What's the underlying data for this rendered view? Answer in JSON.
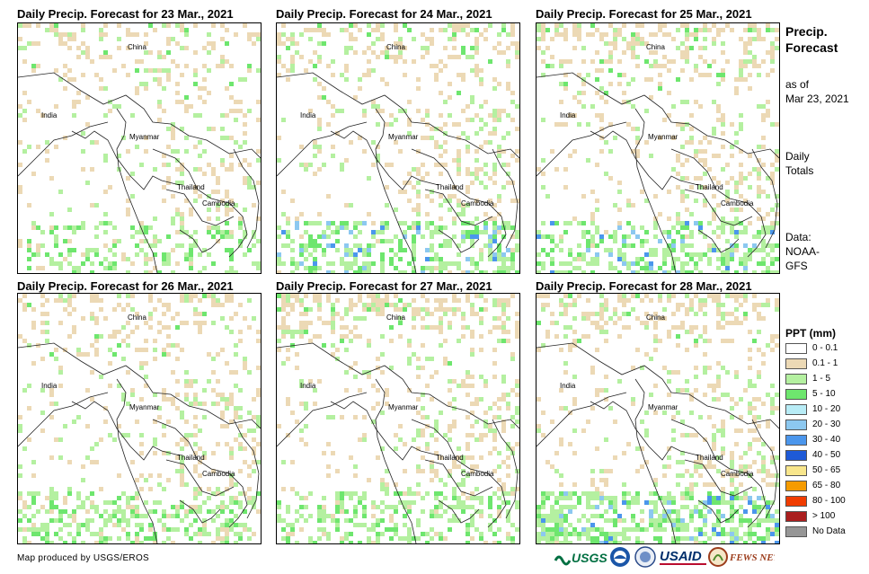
{
  "panels": [
    {
      "title": "Daily Precip. Forecast for 23 Mar., 2021"
    },
    {
      "title": "Daily Precip. Forecast for 24 Mar., 2021"
    },
    {
      "title": "Daily Precip. Forecast for 25 Mar., 2021"
    },
    {
      "title": "Daily Precip. Forecast for 26 Mar., 2021"
    },
    {
      "title": "Daily Precip. Forecast for 27 Mar., 2021"
    },
    {
      "title": "Daily Precip. Forecast for 28 Mar., 2021"
    }
  ],
  "map_labels": {
    "china": "China",
    "india": "India",
    "myanmar": "Myanmar",
    "thailand": "Thailand",
    "cambodia": "Cambodia"
  },
  "side": {
    "title_line1": "Precip.",
    "title_line2": "Forecast",
    "asof_line1": "as of",
    "asof_line2": "Mar 23, 2021",
    "totals_line1": "Daily",
    "totals_line2": "Totals",
    "data_line1": "Data:",
    "data_line2": "NOAA-",
    "data_line3": "GFS"
  },
  "legend": {
    "title": "PPT (mm)",
    "items": [
      {
        "label": "0 - 0.1",
        "color": "#ffffff"
      },
      {
        "label": "0.1 - 1",
        "color": "#ecd9b5"
      },
      {
        "label": "1 - 5",
        "color": "#b4f0a0"
      },
      {
        "label": "5 - 10",
        "color": "#6ee66e"
      },
      {
        "label": "10 - 20",
        "color": "#b8ecf6"
      },
      {
        "label": "20 - 30",
        "color": "#8cc8f0"
      },
      {
        "label": "30 - 40",
        "color": "#4b96ec"
      },
      {
        "label": "40 - 50",
        "color": "#1e5ad7"
      },
      {
        "label": "50 - 65",
        "color": "#f8e68c"
      },
      {
        "label": "65 - 80",
        "color": "#f59b00"
      },
      {
        "label": "80 - 100",
        "color": "#f03c00"
      },
      {
        "label": "> 100",
        "color": "#aa1e1e"
      },
      {
        "label": "No Data",
        "color": "#969696"
      }
    ]
  },
  "credit": "Map produced by USGS/EROS",
  "logos": {
    "usgs": "USGS",
    "usaid": "USAID",
    "fewsnet": "FEWS NET"
  }
}
